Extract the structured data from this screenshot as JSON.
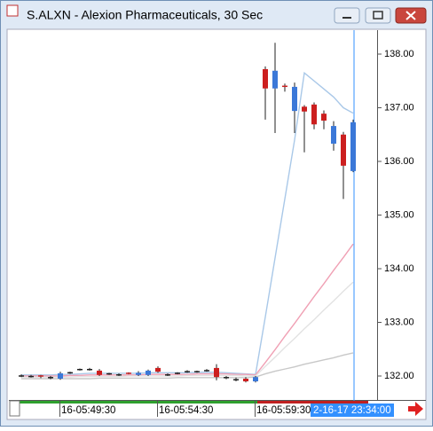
{
  "window": {
    "title": "S.ALXN - Alexion Pharmaceuticals, 30 Sec",
    "cursor_label": "2-16-17 23:34:00"
  },
  "chart_data": {
    "type": "candlestick",
    "categories": [
      null,
      null,
      null,
      null,
      "16-05:49:30",
      null,
      null,
      null,
      null,
      null,
      null,
      null,
      null,
      null,
      "16-05:54:30",
      null,
      null,
      null,
      null,
      null,
      null,
      null,
      null,
      null,
      "16-05:59:30",
      null,
      null,
      null,
      null,
      null,
      null,
      null,
      null,
      null,
      null
    ],
    "open": [
      132.0,
      131.99,
      132.0,
      131.97,
      131.95,
      132.06,
      132.12,
      132.12,
      132.1,
      132.04,
      132.02,
      132.05,
      132.02,
      132.02,
      132.15,
      132.02,
      132.05,
      132.08,
      132.08,
      132.1,
      132.15,
      131.97,
      131.93,
      131.95,
      131.9,
      137.72,
      137.36,
      137.4,
      136.94,
      137.02,
      137.06,
      136.89,
      136.33,
      136.5,
      135.82
    ],
    "high": [
      132.03,
      132.02,
      132.02,
      132.0,
      132.08,
      132.08,
      132.14,
      132.15,
      132.13,
      132.06,
      132.05,
      132.07,
      132.09,
      132.12,
      132.18,
      132.05,
      132.07,
      132.11,
      132.1,
      132.13,
      132.22,
      132.0,
      131.97,
      131.98,
      132.0,
      137.77,
      138.21,
      137.45,
      137.47,
      137.05,
      137.1,
      136.95,
      136.75,
      136.55,
      136.78
    ],
    "low": [
      131.98,
      131.97,
      131.96,
      131.94,
      131.93,
      132.04,
      132.1,
      132.1,
      132.0,
      132.02,
      132.0,
      132.03,
      132.0,
      132.0,
      132.06,
      132.0,
      132.03,
      132.06,
      132.06,
      132.08,
      131.92,
      131.94,
      131.9,
      131.88,
      131.88,
      136.78,
      136.53,
      137.3,
      136.53,
      136.17,
      136.6,
      136.6,
      136.2,
      135.3,
      135.8
    ],
    "close": [
      132.0,
      131.99,
      131.98,
      131.97,
      132.05,
      132.06,
      132.12,
      132.12,
      132.02,
      132.04,
      132.02,
      132.04,
      132.06,
      132.1,
      132.08,
      132.02,
      132.05,
      132.08,
      132.08,
      132.1,
      131.98,
      131.97,
      131.93,
      131.9,
      131.98,
      137.36,
      137.69,
      137.38,
      137.39,
      136.93,
      136.69,
      136.76,
      136.66,
      135.92,
      136.73
    ],
    "up_color": "#3b78d8",
    "down_color": "#cc1f1f",
    "flat_color": "#222222",
    "lines": [
      {
        "color": "#a9c8e8",
        "values": [
          132.02,
          132.02,
          132.02,
          132.02,
          132.03,
          132.03,
          132.04,
          132.05,
          132.05,
          132.05,
          132.05,
          132.05,
          132.05,
          132.06,
          132.06,
          132.06,
          132.06,
          132.06,
          132.07,
          132.07,
          132.07,
          132.06,
          132.05,
          132.04,
          132.03,
          133.1,
          134.2,
          135.3,
          136.4,
          137.65,
          137.5,
          137.35,
          137.2,
          137.0,
          136.9
        ]
      },
      {
        "color": "#f0a0b4",
        "values": [
          132.0,
          132.0,
          132.0,
          132.0,
          132.0,
          132.01,
          132.01,
          132.02,
          132.02,
          132.02,
          132.02,
          132.02,
          132.02,
          132.03,
          132.03,
          132.03,
          132.03,
          132.03,
          132.04,
          132.04,
          132.04,
          132.04,
          132.03,
          132.03,
          132.02,
          132.25,
          132.49,
          132.74,
          132.98,
          133.23,
          133.48,
          133.72,
          133.97,
          134.21,
          134.46
        ]
      },
      {
        "color": "#e2e2e2",
        "values": [
          131.98,
          131.98,
          131.98,
          131.98,
          131.98,
          131.98,
          131.99,
          131.99,
          131.99,
          131.99,
          131.99,
          132.0,
          132.0,
          132.0,
          132.0,
          132.0,
          132.0,
          132.01,
          132.01,
          132.01,
          132.01,
          132.01,
          132.01,
          132.0,
          132.0,
          132.18,
          132.35,
          132.53,
          132.7,
          132.88,
          133.05,
          133.23,
          133.4,
          133.58,
          133.75
        ]
      },
      {
        "color": "#c8c8c8",
        "values": [
          131.95,
          131.95,
          131.95,
          131.95,
          131.95,
          131.95,
          131.95,
          131.95,
          131.96,
          131.96,
          131.96,
          131.96,
          131.96,
          131.96,
          131.96,
          131.96,
          131.97,
          131.97,
          131.97,
          131.97,
          131.97,
          131.97,
          131.97,
          131.97,
          131.98,
          132.04,
          132.09,
          132.13,
          132.17,
          132.22,
          132.26,
          132.3,
          132.34,
          132.39,
          132.43
        ]
      }
    ],
    "ylim": [
      131.57,
      138.43
    ],
    "yticks": [
      {
        "value": 132,
        "label": "132.00"
      },
      {
        "value": 133,
        "label": "133.00"
      },
      {
        "value": 134,
        "label": "134.00"
      },
      {
        "value": 135,
        "label": "135.00"
      },
      {
        "value": 136,
        "label": "136.00"
      },
      {
        "value": 137,
        "label": "137.00"
      },
      {
        "value": 138,
        "label": "138.00"
      }
    ]
  }
}
